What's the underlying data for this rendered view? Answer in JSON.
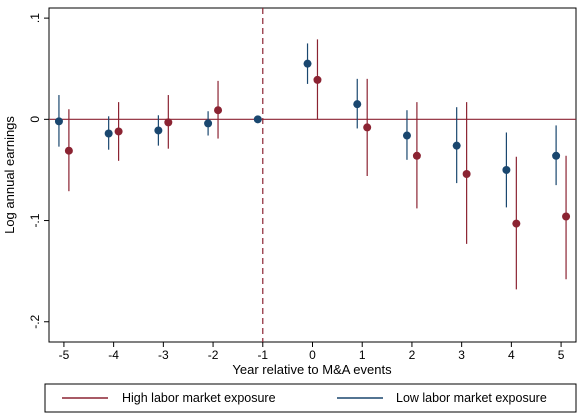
{
  "chart_data": {
    "type": "scatter",
    "title": "",
    "xlabel": "Year relative to M&A events",
    "ylabel": "Log annual earnings",
    "xlim": [
      -5.3,
      5.3
    ],
    "ylim": [
      -0.22,
      0.11
    ],
    "x_ticks": [
      -5,
      -4,
      -3,
      -2,
      -1,
      0,
      1,
      2,
      3,
      4,
      5
    ],
    "x_tick_labels": [
      "-5",
      "-4",
      "-3",
      "-2",
      "-1",
      "0",
      "1",
      "2",
      "3",
      "4",
      "5"
    ],
    "y_ticks": [
      0.1,
      0,
      -0.1,
      -0.2
    ],
    "y_tick_labels": [
      ".1",
      "0",
      "-.1",
      "-.2"
    ],
    "reference_lines": {
      "vertical_x": -1,
      "horizontal_y": 0
    },
    "grid": false,
    "legend_position": "bottom",
    "series": [
      {
        "name": "High labor market exposure",
        "color": "#8b2332",
        "x_offset": 0.1,
        "points": [
          {
            "x": -5,
            "y": -0.031,
            "lo": -0.071,
            "hi": 0.01
          },
          {
            "x": -4,
            "y": -0.012,
            "lo": -0.041,
            "hi": 0.017
          },
          {
            "x": -3,
            "y": -0.003,
            "lo": -0.029,
            "hi": 0.024
          },
          {
            "x": -2,
            "y": 0.009,
            "lo": -0.019,
            "hi": 0.038
          },
          {
            "x": 0,
            "y": 0.039,
            "lo": 0.0,
            "hi": 0.079
          },
          {
            "x": 1,
            "y": -0.008,
            "lo": -0.056,
            "hi": 0.04
          },
          {
            "x": 2,
            "y": -0.036,
            "lo": -0.088,
            "hi": 0.017
          },
          {
            "x": 3,
            "y": -0.054,
            "lo": -0.123,
            "hi": 0.017
          },
          {
            "x": 4,
            "y": -0.103,
            "lo": -0.168,
            "hi": -0.037
          },
          {
            "x": 5,
            "y": -0.096,
            "lo": -0.158,
            "hi": -0.036
          }
        ]
      },
      {
        "name": "Low labor market exposure",
        "color": "#1a476f",
        "x_offset": -0.1,
        "points": [
          {
            "x": -5,
            "y": -0.002,
            "lo": -0.027,
            "hi": 0.024
          },
          {
            "x": -4,
            "y": -0.014,
            "lo": -0.03,
            "hi": 0.003
          },
          {
            "x": -3,
            "y": -0.011,
            "lo": -0.026,
            "hi": 0.004
          },
          {
            "x": -2,
            "y": -0.004,
            "lo": -0.016,
            "hi": 0.008
          },
          {
            "x": -1,
            "y": 0.0,
            "lo": 0.0,
            "hi": 0.0
          },
          {
            "x": 0,
            "y": 0.055,
            "lo": 0.035,
            "hi": 0.075
          },
          {
            "x": 1,
            "y": 0.015,
            "lo": -0.009,
            "hi": 0.04
          },
          {
            "x": 2,
            "y": -0.016,
            "lo": -0.04,
            "hi": 0.009
          },
          {
            "x": 3,
            "y": -0.026,
            "lo": -0.063,
            "hi": 0.012
          },
          {
            "x": 4,
            "y": -0.05,
            "lo": -0.087,
            "hi": -0.013
          },
          {
            "x": 5,
            "y": -0.036,
            "lo": -0.065,
            "hi": -0.006
          }
        ]
      }
    ]
  }
}
